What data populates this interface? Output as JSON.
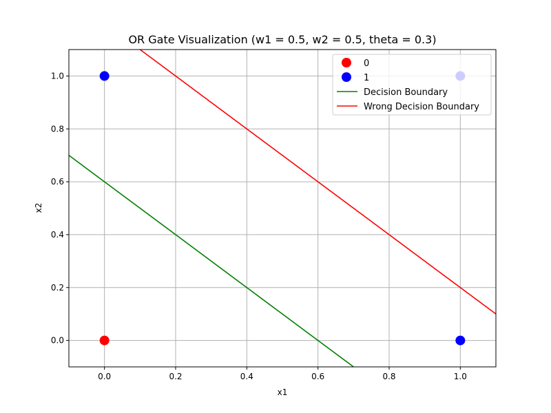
{
  "chart_data": {
    "type": "scatter",
    "title": "OR Gate Visualization (w1 = 0.5, w2 = 0.5, theta = 0.3)",
    "xlabel": "x1",
    "ylabel": "x2",
    "xlim": [
      -0.1,
      1.1
    ],
    "ylim": [
      -0.1,
      1.1
    ],
    "grid": true,
    "legend_position": "top-right",
    "x_ticks": [
      {
        "value": 0.0,
        "label": "0.0"
      },
      {
        "value": 0.2,
        "label": "0.2"
      },
      {
        "value": 0.4,
        "label": "0.4"
      },
      {
        "value": 0.6,
        "label": "0.6"
      },
      {
        "value": 0.8,
        "label": "0.8"
      },
      {
        "value": 1.0,
        "label": "1.0"
      }
    ],
    "y_ticks": [
      {
        "value": 0.0,
        "label": "0.0"
      },
      {
        "value": 0.2,
        "label": "0.2"
      },
      {
        "value": 0.4,
        "label": "0.4"
      },
      {
        "value": 0.6,
        "label": "0.6"
      },
      {
        "value": 0.8,
        "label": "0.8"
      },
      {
        "value": 1.0,
        "label": "1.0"
      }
    ],
    "points": [
      {
        "x": 0,
        "y": 0,
        "class": "0",
        "color": "#ff0000"
      },
      {
        "x": 0,
        "y": 1,
        "class": "1",
        "color": "#0000ff"
      },
      {
        "x": 1,
        "y": 0,
        "class": "1",
        "color": "#0000ff"
      },
      {
        "x": 1,
        "y": 1,
        "class": "1",
        "color": "#0000ff"
      }
    ],
    "lines": [
      {
        "name": "Decision Boundary",
        "color": "#008000",
        "x": [
          -0.1,
          0.7
        ],
        "y": [
          0.7,
          -0.1
        ]
      },
      {
        "name": "Wrong Decision Boundary",
        "color": "#ff0000",
        "x": [
          0.1,
          1.1
        ],
        "y": [
          1.1,
          0.1
        ]
      }
    ],
    "legend": [
      {
        "label": "0",
        "kind": "marker",
        "color": "#ff0000"
      },
      {
        "label": "1",
        "kind": "marker",
        "color": "#0000ff"
      },
      {
        "label": "Decision Boundary",
        "kind": "line",
        "color": "#008000"
      },
      {
        "label": "Wrong Decision Boundary",
        "kind": "line",
        "color": "#ff0000"
      }
    ]
  }
}
